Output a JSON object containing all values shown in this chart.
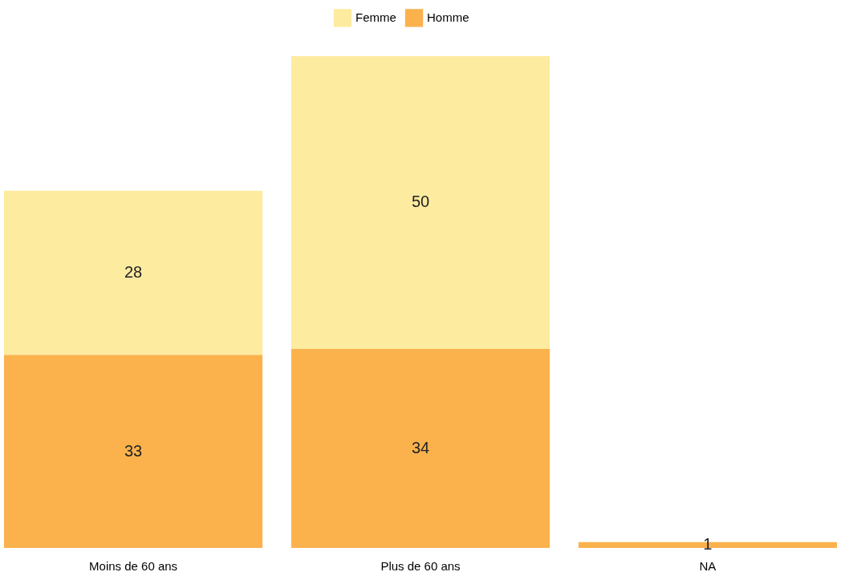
{
  "chart_data": {
    "type": "bar",
    "stacked": true,
    "data_labels": true,
    "legend": "top",
    "grid": false,
    "categories": [
      "Moins de 60 ans",
      "Plus de 60 ans",
      "NA"
    ],
    "series": [
      {
        "name": "Homme",
        "color": "#fbb24d",
        "values": [
          33,
          34,
          1
        ]
      },
      {
        "name": "Femme",
        "color": "#fdeba0",
        "values": [
          28,
          50,
          null
        ]
      }
    ]
  }
}
